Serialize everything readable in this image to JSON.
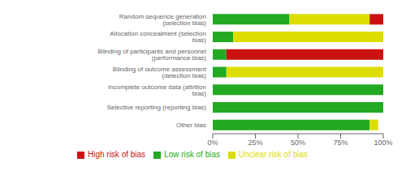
{
  "chart_data": {
    "type": "bar",
    "orientation": "horizontal",
    "stacked": true,
    "categories": [
      "Random sequence generation (selection bias)",
      "Allocation concealment (selection bias)",
      "Blinding of participants and personnel (performance bias)",
      "Blinding of outcome assessment (detection bias)",
      "Incomplete outcome data (attrition bias)",
      "Selective reporting (reporting bias)",
      "Other bias"
    ],
    "series": [
      {
        "name": "Low risk of bias",
        "color": "#22aa22",
        "values": [
          45,
          12,
          8,
          8,
          100,
          100,
          92
        ]
      },
      {
        "name": "Unclear risk of bias",
        "color": "#dddd00",
        "values": [
          47,
          88,
          0,
          92,
          0,
          0,
          5
        ]
      },
      {
        "name": "High risk of bias",
        "color": "#cc1111",
        "values": [
          8,
          0,
          92,
          0,
          0,
          0,
          0
        ]
      }
    ],
    "xlim": [
      0,
      100
    ],
    "xticks": [
      {
        "value": 0,
        "label": "0%"
      },
      {
        "value": 25,
        "label": "25%"
      },
      {
        "value": 50,
        "label": "50%"
      },
      {
        "value": 75,
        "label": "75%"
      },
      {
        "value": 100,
        "label": "100%"
      }
    ],
    "grid": false,
    "legend": "bottom"
  }
}
